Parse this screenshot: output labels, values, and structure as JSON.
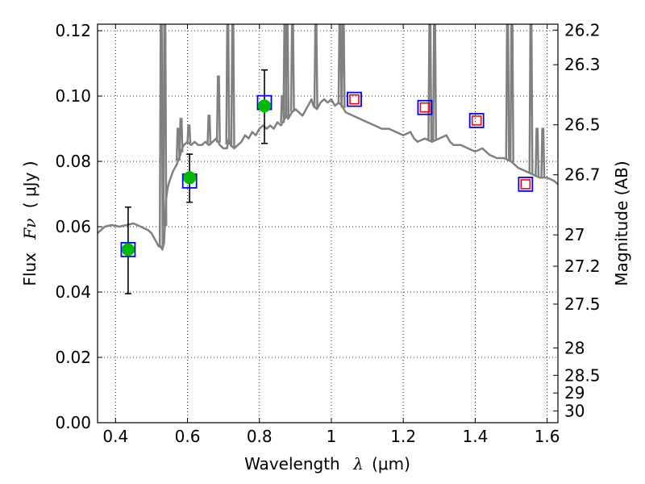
{
  "chart_data": {
    "type": "scatter",
    "title": "",
    "xlabel_text": "Wavelength",
    "xlabel_symbol": "λ",
    "xlabel_unit": "(μm)",
    "ylabel_text": "Flux",
    "ylabel_symbol": "Fν",
    "ylabel_unit": "( μJy )",
    "y2label": "Magnitude (AB)",
    "xlim": [
      0.35,
      1.63
    ],
    "ylim": [
      0.0,
      0.122
    ],
    "grid": true,
    "x_ticks": [
      0.4,
      0.6,
      0.8,
      1.0,
      1.2,
      1.4,
      1.6
    ],
    "x_tick_labels": [
      "0.4",
      "0.6",
      "0.8",
      "1",
      "1.2",
      "1.4",
      "1.6"
    ],
    "y_ticks": [
      0.0,
      0.02,
      0.04,
      0.06,
      0.08,
      0.1,
      0.12
    ],
    "y_tick_labels": [
      "0.00",
      "0.02",
      "0.04",
      "0.06",
      "0.08",
      "0.10",
      "0.12"
    ],
    "y2_ticks": [
      {
        "label": "26.2",
        "flux": 0.1202
      },
      {
        "label": "26.3",
        "flux": 0.1096
      },
      {
        "label": "26.5",
        "flux": 0.0912
      },
      {
        "label": "26.7",
        "flux": 0.0759
      },
      {
        "label": "27",
        "flux": 0.0575
      },
      {
        "label": "27.2",
        "flux": 0.0479
      },
      {
        "label": "27.5",
        "flux": 0.0363
      },
      {
        "label": "28",
        "flux": 0.0229
      },
      {
        "label": "28.5",
        "flux": 0.0145
      },
      {
        "label": "29",
        "flux": 0.0091
      },
      {
        "label": "30",
        "flux": 0.0036
      }
    ],
    "series": [
      {
        "kind": "line",
        "color": "#808080",
        "x": [
          0.35,
          0.37,
          0.39,
          0.41,
          0.43,
          0.45,
          0.47,
          0.49,
          0.5,
          0.51,
          0.515,
          0.52,
          0.525,
          0.53,
          0.535,
          0.54,
          0.545,
          0.55,
          0.56,
          0.57,
          0.58,
          0.585,
          0.59,
          0.6,
          0.61,
          0.62,
          0.63,
          0.64,
          0.65,
          0.66,
          0.67,
          0.68,
          0.69,
          0.7,
          0.71,
          0.715,
          0.72,
          0.73,
          0.74,
          0.75,
          0.76,
          0.77,
          0.78,
          0.79,
          0.8,
          0.81,
          0.82,
          0.83,
          0.84,
          0.85,
          0.86,
          0.87,
          0.875,
          0.88,
          0.89,
          0.9,
          0.91,
          0.92,
          0.93,
          0.94,
          0.945,
          0.95,
          0.96,
          0.97,
          0.98,
          0.99,
          1.0,
          1.01,
          1.02,
          1.03,
          1.04,
          1.06,
          1.08,
          1.1,
          1.12,
          1.14,
          1.16,
          1.18,
          1.2,
          1.22,
          1.23,
          1.24,
          1.26,
          1.28,
          1.3,
          1.32,
          1.33,
          1.34,
          1.36,
          1.38,
          1.4,
          1.42,
          1.44,
          1.46,
          1.48,
          1.5,
          1.52,
          1.54,
          1.56,
          1.58,
          1.6,
          1.62,
          1.63
        ],
        "y": [
          0.058,
          0.06,
          0.0605,
          0.06,
          0.0605,
          0.061,
          0.06,
          0.059,
          0.058,
          0.056,
          0.055,
          0.054,
          0.054,
          0.053,
          0.055,
          0.068,
          0.072,
          0.074,
          0.077,
          0.079,
          0.082,
          0.084,
          0.085,
          0.086,
          0.085,
          0.086,
          0.085,
          0.085,
          0.086,
          0.085,
          0.086,
          0.087,
          0.085,
          0.084,
          0.084,
          0.087,
          0.085,
          0.084,
          0.085,
          0.086,
          0.088,
          0.087,
          0.089,
          0.088,
          0.09,
          0.091,
          0.09,
          0.091,
          0.09,
          0.092,
          0.091,
          0.093,
          0.094,
          0.093,
          0.095,
          0.096,
          0.095,
          0.094,
          0.096,
          0.098,
          0.099,
          0.097,
          0.096,
          0.098,
          0.099,
          0.098,
          0.099,
          0.097,
          0.098,
          0.097,
          0.095,
          0.094,
          0.093,
          0.092,
          0.091,
          0.09,
          0.09,
          0.089,
          0.088,
          0.089,
          0.087,
          0.086,
          0.087,
          0.086,
          0.087,
          0.088,
          0.086,
          0.085,
          0.085,
          0.084,
          0.083,
          0.084,
          0.082,
          0.081,
          0.081,
          0.08,
          0.078,
          0.077,
          0.076,
          0.075,
          0.075,
          0.074,
          0.073
        ]
      },
      {
        "kind": "scatter",
        "marker": "circle",
        "color": "#00bb00",
        "x": [
          0.435,
          0.606,
          0.814
        ],
        "y": [
          0.053,
          0.075,
          0.097
        ],
        "yerr_low": [
          0.0395,
          0.0675,
          0.0855
        ],
        "yerr_high": [
          0.066,
          0.0822,
          0.108
        ]
      },
      {
        "kind": "scatter",
        "marker": "square-open",
        "color": "#0000ff",
        "x": [
          0.435,
          0.606,
          0.814,
          1.064,
          1.26,
          1.404,
          1.54
        ],
        "y": [
          0.053,
          0.074,
          0.098,
          0.099,
          0.0965,
          0.0925,
          0.073
        ]
      },
      {
        "kind": "scatter",
        "marker": "square-open-small",
        "color": "#ff0000",
        "x": [
          1.064,
          1.26,
          1.404,
          1.54
        ],
        "y": [
          0.099,
          0.0965,
          0.0925,
          0.073
        ]
      }
    ],
    "emission_lines": [
      {
        "x": 0.527,
        "peak": 0.122
      },
      {
        "x": 0.537,
        "peak": 0.122
      },
      {
        "x": 0.574,
        "peak": 0.09
      },
      {
        "x": 0.582,
        "peak": 0.093
      },
      {
        "x": 0.604,
        "peak": 0.091
      },
      {
        "x": 0.66,
        "peak": 0.094
      },
      {
        "x": 0.686,
        "peak": 0.106
      },
      {
        "x": 0.712,
        "peak": 0.122
      },
      {
        "x": 0.726,
        "peak": 0.122
      },
      {
        "x": 0.864,
        "peak": 0.1
      },
      {
        "x": 0.871,
        "peak": 0.122
      },
      {
        "x": 0.877,
        "peak": 0.122
      },
      {
        "x": 0.892,
        "peak": 0.122
      },
      {
        "x": 0.957,
        "peak": 0.122
      },
      {
        "x": 1.024,
        "peak": 0.122
      },
      {
        "x": 1.033,
        "peak": 0.122
      },
      {
        "x": 1.274,
        "peak": 0.122
      },
      {
        "x": 1.287,
        "peak": 0.122
      },
      {
        "x": 1.49,
        "peak": 0.122
      },
      {
        "x": 1.502,
        "peak": 0.122
      },
      {
        "x": 1.555,
        "peak": 0.122
      },
      {
        "x": 1.572,
        "peak": 0.09
      },
      {
        "x": 1.588,
        "peak": 0.09
      }
    ]
  }
}
